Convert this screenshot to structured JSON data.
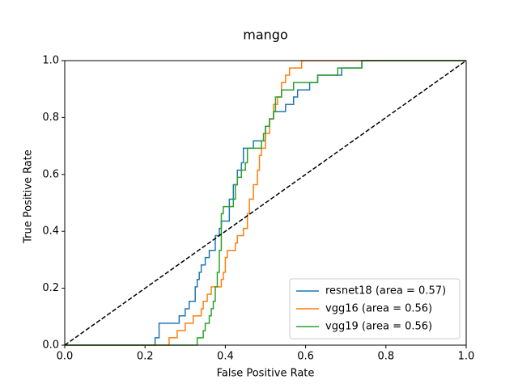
{
  "chart_data": {
    "type": "line",
    "title": "mango",
    "x_label": "False Positive Rate",
    "y_label": "True Positive Rate",
    "xlim": [
      0,
      1
    ],
    "ylim": [
      0,
      1
    ],
    "xticks": [
      {
        "value": 0,
        "label": "0.0"
      },
      0.2,
      0.4,
      0.6,
      0.8,
      {
        "value": 1,
        "label": "1.0"
      }
    ],
    "yticks": [
      {
        "value": 0,
        "label": "0.0"
      },
      0.2,
      0.4,
      0.6,
      0.8,
      {
        "value": 1,
        "label": "1.0"
      }
    ],
    "legend": "lower right",
    "reference_line": {
      "x": [
        0,
        1
      ],
      "values": [
        0,
        1
      ],
      "color": "#000000",
      "dashed": true
    },
    "series": [
      {
        "name": "resnet18 (area = 0.57)",
        "color": "#1f77b4",
        "x": [
          0,
          0.225,
          0.225,
          0.235,
          0.235,
          0.285,
          0.285,
          0.3,
          0.3,
          0.31,
          0.31,
          0.325,
          0.325,
          0.33,
          0.33,
          0.335,
          0.335,
          0.34,
          0.34,
          0.35,
          0.35,
          0.36,
          0.36,
          0.375,
          0.375,
          0.385,
          0.385,
          0.39,
          0.39,
          0.41,
          0.41,
          0.42,
          0.42,
          0.43,
          0.43,
          0.44,
          0.44,
          0.445,
          0.445,
          0.47,
          0.47,
          0.5,
          0.5,
          0.51,
          0.51,
          0.52,
          0.52,
          0.55,
          0.55,
          0.57,
          0.57,
          0.58,
          0.58,
          0.61,
          0.61,
          0.63,
          0.63,
          0.69,
          0.69,
          0.74,
          0.74,
          1
        ],
        "values": [
          0,
          0,
          0.026,
          0.026,
          0.077,
          0.077,
          0.103,
          0.103,
          0.128,
          0.128,
          0.154,
          0.154,
          0.205,
          0.205,
          0.231,
          0.231,
          0.256,
          0.256,
          0.282,
          0.282,
          0.308,
          0.308,
          0.333,
          0.333,
          0.385,
          0.385,
          0.41,
          0.41,
          0.436,
          0.436,
          0.513,
          0.513,
          0.564,
          0.564,
          0.615,
          0.615,
          0.641,
          0.641,
          0.692,
          0.692,
          0.718,
          0.718,
          0.769,
          0.769,
          0.795,
          0.795,
          0.821,
          0.821,
          0.846,
          0.846,
          0.872,
          0.872,
          0.897,
          0.897,
          0.923,
          0.923,
          0.949,
          0.949,
          0.974,
          0.974,
          1,
          1
        ]
      },
      {
        "name": "vgg16 (area = 0.56)",
        "color": "#ff7f0e",
        "x": [
          0,
          0.26,
          0.26,
          0.28,
          0.28,
          0.3,
          0.3,
          0.32,
          0.32,
          0.34,
          0.34,
          0.345,
          0.345,
          0.355,
          0.355,
          0.365,
          0.365,
          0.39,
          0.39,
          0.395,
          0.395,
          0.4,
          0.4,
          0.405,
          0.405,
          0.425,
          0.425,
          0.43,
          0.43,
          0.445,
          0.445,
          0.455,
          0.455,
          0.46,
          0.46,
          0.47,
          0.47,
          0.48,
          0.48,
          0.485,
          0.485,
          0.49,
          0.49,
          0.5,
          0.5,
          0.51,
          0.51,
          0.52,
          0.52,
          0.53,
          0.53,
          0.54,
          0.54,
          0.55,
          0.55,
          0.56,
          0.56,
          0.59,
          0.59,
          0.675,
          1
        ],
        "values": [
          0,
          0,
          0.026,
          0.026,
          0.051,
          0.051,
          0.077,
          0.077,
          0.103,
          0.103,
          0.128,
          0.128,
          0.154,
          0.154,
          0.179,
          0.179,
          0.205,
          0.205,
          0.231,
          0.231,
          0.256,
          0.256,
          0.308,
          0.308,
          0.333,
          0.333,
          0.359,
          0.359,
          0.385,
          0.385,
          0.41,
          0.41,
          0.462,
          0.462,
          0.513,
          0.513,
          0.564,
          0.564,
          0.615,
          0.615,
          0.667,
          0.667,
          0.692,
          0.692,
          0.744,
          0.744,
          0.795,
          0.795,
          0.846,
          0.846,
          0.872,
          0.872,
          0.923,
          0.923,
          0.949,
          0.949,
          0.974,
          0.974,
          1,
          1,
          1
        ]
      },
      {
        "name": "vgg19 (area = 0.56)",
        "color": "#2ca02c",
        "x": [
          0,
          0.33,
          0.33,
          0.345,
          0.345,
          0.35,
          0.35,
          0.36,
          0.36,
          0.365,
          0.365,
          0.37,
          0.37,
          0.375,
          0.375,
          0.38,
          0.38,
          0.385,
          0.385,
          0.39,
          0.39,
          0.395,
          0.395,
          0.42,
          0.42,
          0.425,
          0.425,
          0.43,
          0.43,
          0.44,
          0.44,
          0.45,
          0.45,
          0.455,
          0.455,
          0.49,
          0.49,
          0.495,
          0.495,
          0.5,
          0.5,
          0.51,
          0.51,
          0.52,
          0.52,
          0.525,
          0.525,
          0.54,
          0.54,
          0.57,
          0.57,
          0.63,
          0.63,
          0.68,
          0.68,
          0.74,
          0.74,
          1
        ],
        "values": [
          0,
          0,
          0.026,
          0.026,
          0.051,
          0.051,
          0.077,
          0.077,
          0.103,
          0.103,
          0.128,
          0.128,
          0.154,
          0.154,
          0.205,
          0.205,
          0.256,
          0.256,
          0.333,
          0.333,
          0.462,
          0.462,
          0.487,
          0.487,
          0.513,
          0.513,
          0.564,
          0.564,
          0.59,
          0.59,
          0.615,
          0.615,
          0.641,
          0.641,
          0.692,
          0.692,
          0.718,
          0.718,
          0.744,
          0.744,
          0.769,
          0.769,
          0.795,
          0.795,
          0.821,
          0.821,
          0.872,
          0.872,
          0.897,
          0.897,
          0.923,
          0.923,
          0.949,
          0.949,
          0.974,
          0.974,
          1,
          1
        ]
      }
    ]
  }
}
